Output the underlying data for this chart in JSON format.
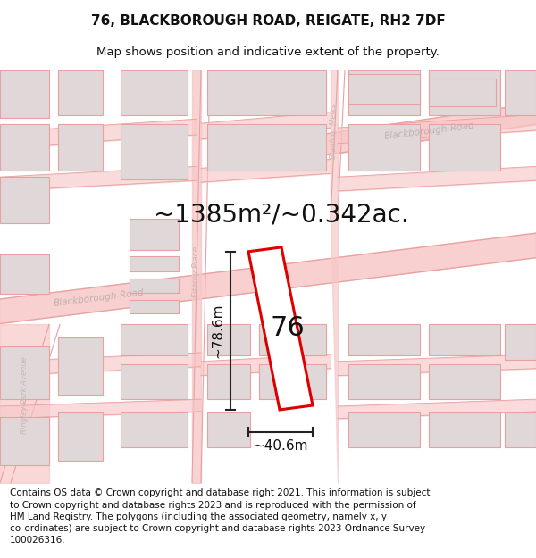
{
  "title_line1": "76, BLACKBOROUGH ROAD, REIGATE, RH2 7DF",
  "title_line2": "Map shows position and indicative extent of the property.",
  "area_label": "~1385m²/~0.342ac.",
  "property_number": "76",
  "width_label": "~40.6m",
  "height_label": "~78.6m",
  "footer_text": "Contains OS data © Crown copyright and database right 2021. This information is subject to Crown copyright and database rights 2023 and is reproduced with the permission of HM Land Registry. The polygons (including the associated geometry, namely x, y co-ordinates) are subject to Crown copyright and database rights 2023 Ordnance Survey 100026316.",
  "map_bg": "#ffffff",
  "road_fill": "#f7c8c8",
  "road_line": "#e8a0a0",
  "bldg_fill": "#e0d8d8",
  "bldg_line": "#e8a0a0",
  "prop_fill": "#ffffff",
  "prop_edge": "#dd0000",
  "dim_color": "#222222",
  "road_label_color": "#c0b0b0",
  "title_fs": 11,
  "sub_fs": 9.5,
  "area_fs": 20,
  "num_fs": 22,
  "dim_fs": 11,
  "footer_fs": 7.5
}
